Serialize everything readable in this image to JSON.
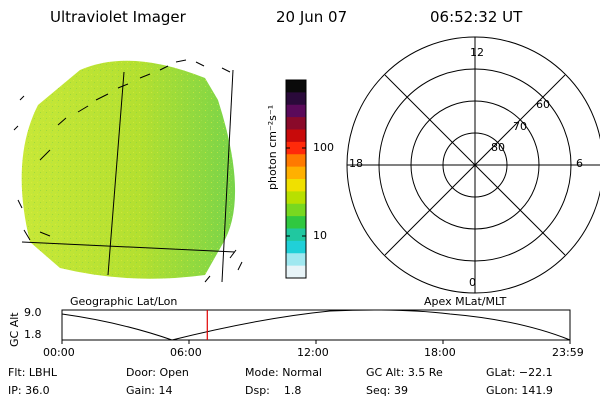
{
  "header": {
    "instrument": "Ultraviolet Imager",
    "date": "20 Jun 07",
    "time": "06:52:32 UT"
  },
  "colorbar": {
    "unit_label": "photon cm⁻²s⁻¹",
    "ticks": [
      "100",
      "10"
    ],
    "colors": [
      "#0a0a0a",
      "#2a0a3a",
      "#5a0a5a",
      "#8a0a2a",
      "#c80a0a",
      "#ff2a0a",
      "#ff7a00",
      "#ffb000",
      "#f0e000",
      "#b8e000",
      "#78d820",
      "#30c840",
      "#20c8a0",
      "#20d0d8",
      "#a0e8f0",
      "#e8f4f8"
    ]
  },
  "polar": {
    "clock_labels": {
      "top": "12",
      "left": "18",
      "right": "6",
      "bottom": "0"
    },
    "lat_labels": [
      "60",
      "70",
      "80"
    ]
  },
  "labels": {
    "geographic": "Geographic Lat/Lon",
    "apex": "Apex MLat/MLT"
  },
  "altitude_plot": {
    "axis_title": "GC Alt",
    "y_ticks": [
      "9.0",
      "1.8"
    ],
    "x_ticks": [
      "00:00",
      "06:00",
      "12:00",
      "18:00",
      "23:59"
    ],
    "current_time_marker_color": "#e00000",
    "current_time_fraction": 0.286
  },
  "status": {
    "flt": {
      "label": "Flt:",
      "value": "LBHL"
    },
    "ip": {
      "label": "IP:",
      "value": "36.0"
    },
    "door": {
      "label": "Door:",
      "value": "Open"
    },
    "gain": {
      "label": "Gain:",
      "value": "14"
    },
    "mode": {
      "label": "Mode:",
      "value": "Normal"
    },
    "dsp": {
      "label": "Dsp:",
      "value": "1.8"
    },
    "gcalt": {
      "label": "GC Alt:",
      "value": "3.5 Re"
    },
    "seq": {
      "label": "Seq:",
      "value": "39"
    },
    "glat": {
      "label": "GLat:",
      "value": "−22.1"
    },
    "glon": {
      "label": "GLon:",
      "value": "141.9"
    }
  },
  "disc_colors": {
    "main": "#b8e030",
    "east": "#88d840"
  }
}
